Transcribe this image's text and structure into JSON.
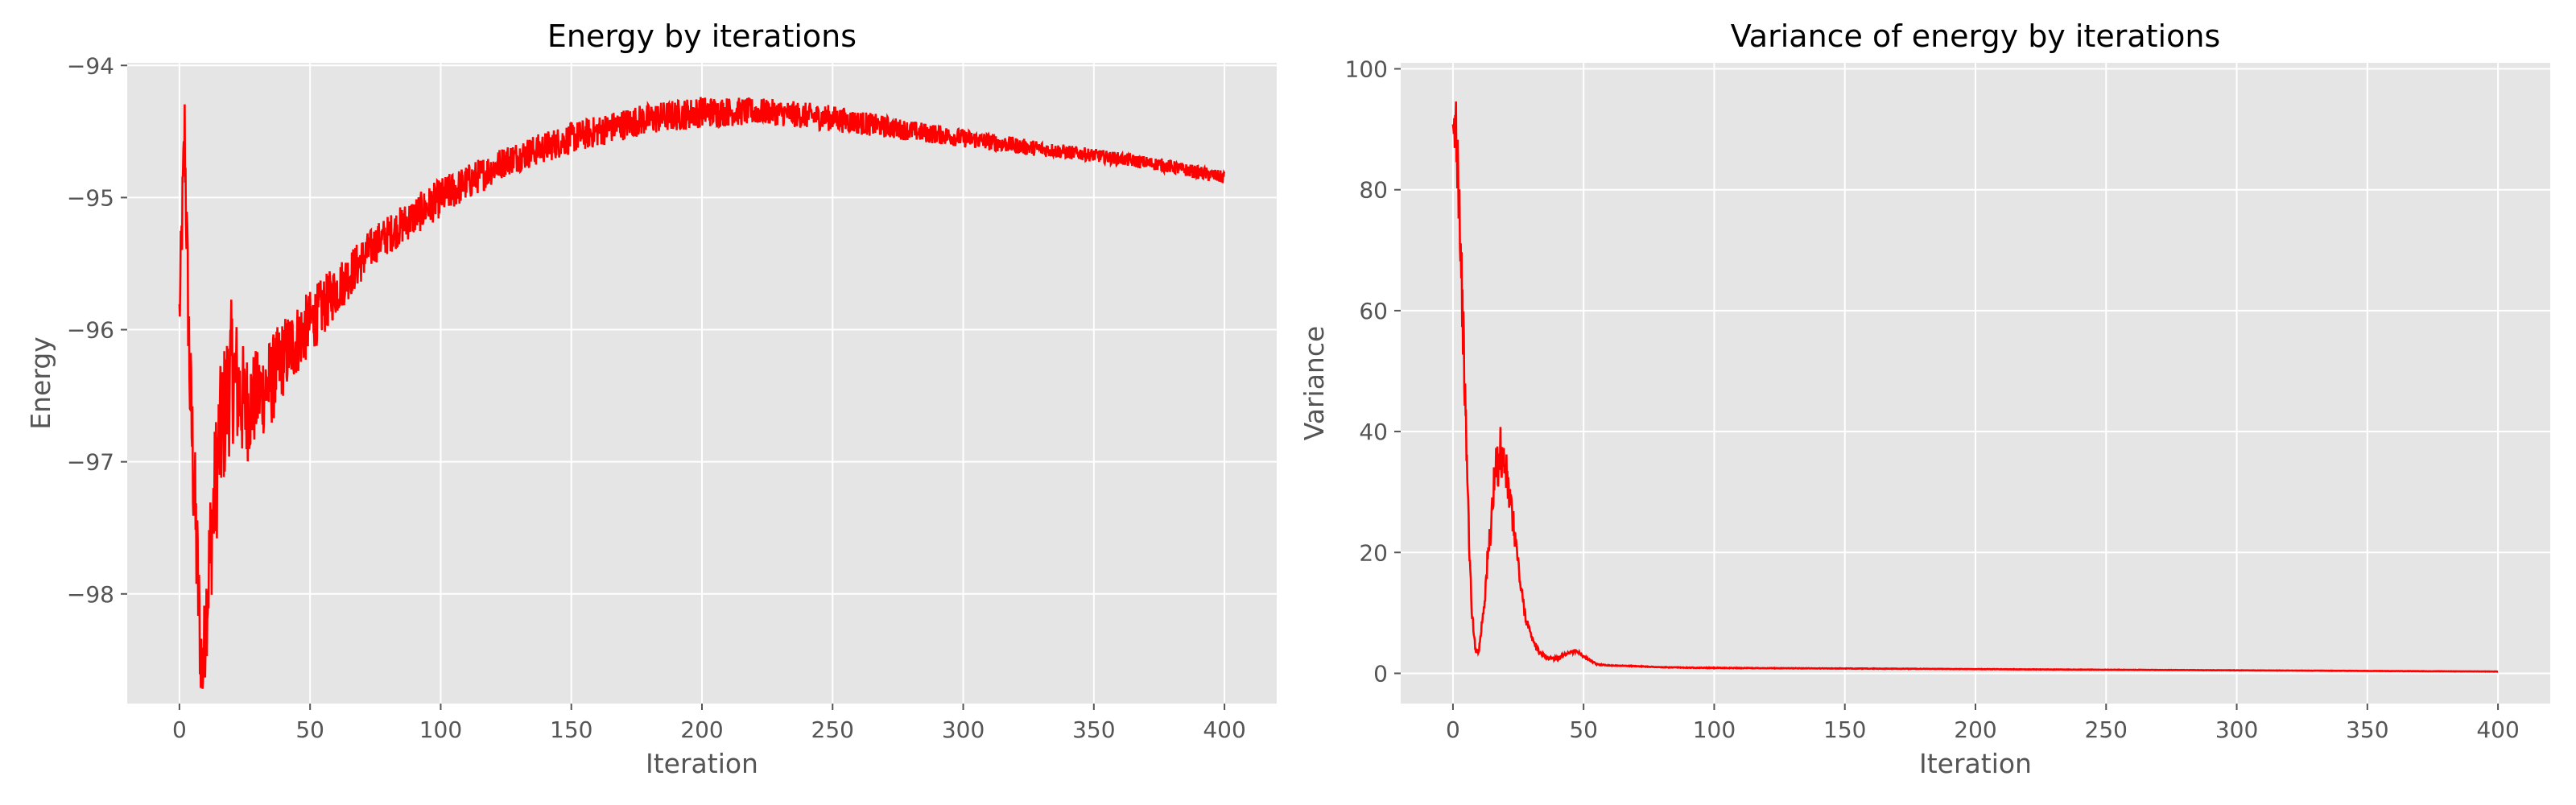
{
  "colors": {
    "line": "#ff0000",
    "axes_bg": "#e5e5e5",
    "grid": "#ffffff",
    "text": "#555555",
    "title": "#000000"
  },
  "chart_data": [
    {
      "type": "line",
      "title": "Energy by iterations",
      "xlabel": "Iteration",
      "ylabel": "Energy",
      "xlim": [
        -20,
        420
      ],
      "ylim": [
        -98.83,
        -93.98
      ],
      "xticks": [
        0,
        50,
        100,
        150,
        200,
        250,
        300,
        350,
        400
      ],
      "yticks": [
        -98,
        -97,
        -96,
        -95,
        -94
      ],
      "xtick_labels": [
        "0",
        "50",
        "100",
        "150",
        "200",
        "250",
        "300",
        "350",
        "400"
      ],
      "ytick_labels": [
        "−98",
        "−97",
        "−96",
        "−95",
        "−94"
      ],
      "grid": true,
      "legend": "none",
      "series": [
        {
          "x": [
            0,
            1,
            2,
            3,
            4,
            5,
            6,
            7,
            8,
            9,
            10,
            12,
            15,
            20,
            25,
            30,
            35,
            40,
            50,
            60,
            75,
            100,
            125,
            150,
            175,
            200,
            225,
            250,
            275,
            300,
            325,
            350,
            375,
            400
          ],
          "values": [
            -95.9,
            -95.2,
            -94.5,
            -95.5,
            -96.4,
            -96.9,
            -97.4,
            -97.9,
            -98.4,
            -98.6,
            -98.2,
            -97.6,
            -96.9,
            -96.3,
            -96.6,
            -96.5,
            -96.4,
            -96.2,
            -95.95,
            -95.7,
            -95.35,
            -95.0,
            -94.72,
            -94.55,
            -94.42,
            -94.35,
            -94.35,
            -94.4,
            -94.48,
            -94.55,
            -94.62,
            -94.68,
            -94.75,
            -94.85
          ],
          "noise": [
            0.3,
            0.3,
            0.35,
            0.4,
            0.45,
            0.5,
            0.5,
            0.5,
            0.35,
            0.3,
            0.4,
            0.5,
            0.55,
            0.55,
            0.45,
            0.35,
            0.35,
            0.3,
            0.25,
            0.2,
            0.15,
            0.15,
            0.12,
            0.12,
            0.12,
            0.12,
            0.1,
            0.1,
            0.08,
            0.07,
            0.06,
            0.05,
            0.05,
            0.05
          ]
        }
      ]
    },
    {
      "type": "line",
      "title": "Variance of energy by iterations",
      "xlabel": "Iteration",
      "ylabel": "Variance",
      "xlim": [
        -20,
        420
      ],
      "ylim": [
        -5,
        101
      ],
      "xticks": [
        0,
        50,
        100,
        150,
        200,
        250,
        300,
        350,
        400
      ],
      "yticks": [
        0,
        20,
        40,
        60,
        80,
        100
      ],
      "xtick_labels": [
        "0",
        "50",
        "100",
        "150",
        "200",
        "250",
        "300",
        "350",
        "400"
      ],
      "ytick_labels": [
        "0",
        "20",
        "40",
        "60",
        "80",
        "100"
      ],
      "grid": true,
      "legend": "none",
      "series": [
        {
          "x": [
            0,
            1,
            2,
            3,
            4,
            5,
            6,
            7,
            8,
            9,
            10,
            12,
            14,
            16,
            18,
            20,
            22,
            24,
            26,
            28,
            30,
            33,
            36,
            40,
            44,
            47,
            50,
            55,
            60,
            70,
            80,
            100,
            150,
            200,
            250,
            300,
            350,
            400
          ],
          "values": [
            84,
            92,
            85,
            70,
            55,
            40,
            25,
            12,
            6,
            3.5,
            4,
            12,
            22,
            32,
            37,
            34,
            28,
            22,
            14,
            9,
            6,
            3.5,
            2.6,
            2.5,
            3.2,
            3.8,
            2.8,
            1.5,
            1.3,
            1.2,
            1.0,
            0.9,
            0.8,
            0.7,
            0.6,
            0.5,
            0.4,
            0.3
          ],
          "noise": [
            8,
            8,
            8,
            6,
            5,
            4,
            3,
            1.5,
            1,
            0.5,
            0.5,
            2,
            3,
            4,
            5,
            4,
            3,
            2,
            1.5,
            1,
            0.5,
            0.4,
            0.3,
            0.3,
            0.3,
            0.3,
            0.2,
            0.1,
            0.05,
            0.05,
            0.05,
            0.05,
            0.04,
            0.03,
            0.03,
            0.02,
            0.02,
            0.02
          ]
        }
      ]
    }
  ]
}
